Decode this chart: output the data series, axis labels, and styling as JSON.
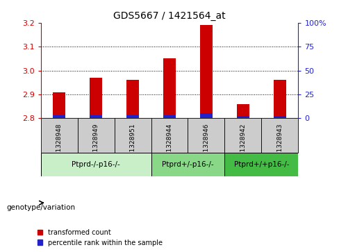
{
  "title": "GDS5667 / 1421564_at",
  "samples": [
    "GSM1328948",
    "GSM1328949",
    "GSM1328951",
    "GSM1328944",
    "GSM1328946",
    "GSM1328942",
    "GSM1328943"
  ],
  "red_values": [
    2.91,
    2.97,
    2.96,
    3.05,
    3.19,
    2.86,
    2.96
  ],
  "blue_heights": [
    0.012,
    0.014,
    0.014,
    0.014,
    0.022,
    0.01,
    0.01
  ],
  "ylim_left": [
    2.8,
    3.2
  ],
  "yticks_left": [
    2.8,
    2.9,
    3.0,
    3.1,
    3.2
  ],
  "yticks_right": [
    0,
    25,
    50,
    75,
    100
  ],
  "groups": [
    {
      "label": "Ptprd-/-p16-/-",
      "indices": [
        0,
        1,
        2
      ],
      "color": "#c8efc8"
    },
    {
      "label": "Ptprd+/-p16-/-",
      "indices": [
        3,
        4
      ],
      "color": "#88d888"
    },
    {
      "label": "Ptprd+/+p16-/-",
      "indices": [
        5,
        6
      ],
      "color": "#44bb44"
    }
  ],
  "bar_bottom": 2.8,
  "bar_width": 0.35,
  "red_color": "#cc0000",
  "blue_color": "#2222cc",
  "grid_color": "#000000",
  "sample_box_color": "#cccccc",
  "genotype_label": "genotype/variation",
  "legend_red": "transformed count",
  "legend_blue": "percentile rank within the sample",
  "left_axis_color": "#cc0000",
  "right_axis_color": "#2222cc",
  "grid_yticks": [
    2.9,
    3.0,
    3.1
  ]
}
